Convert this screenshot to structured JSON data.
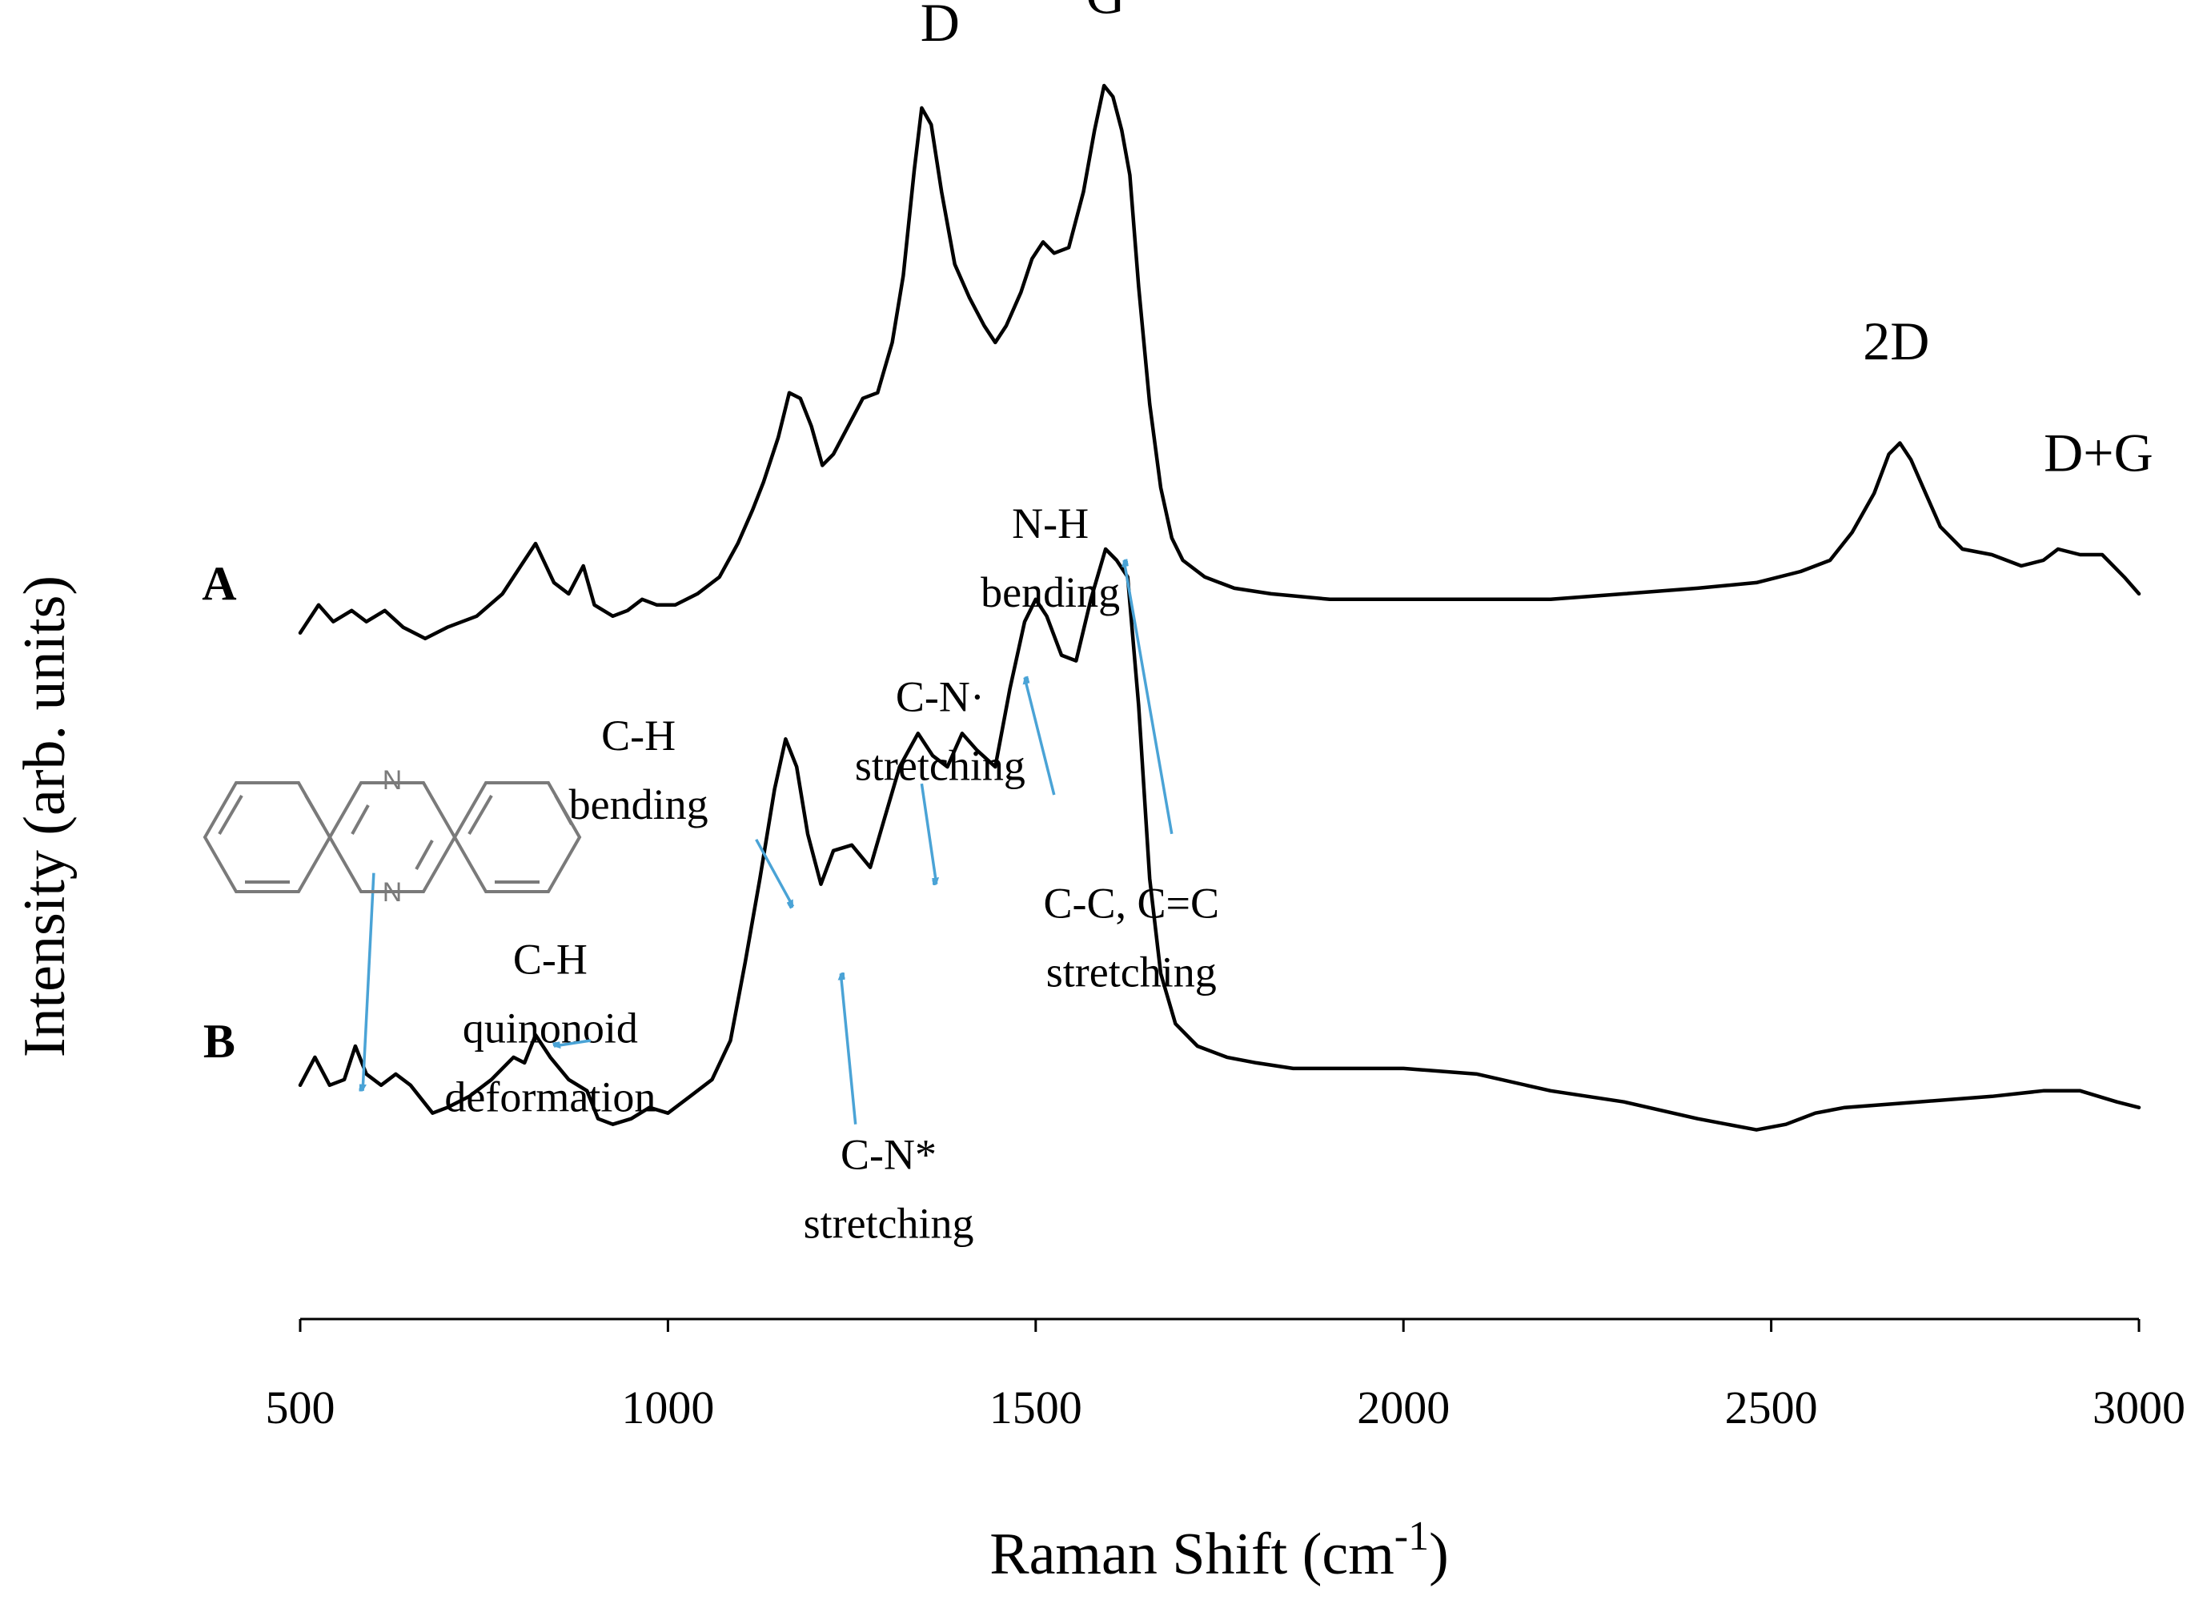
{
  "chart_data": {
    "type": "line",
    "title": "",
    "xlabel": "Raman Shift (cm",
    "xlabel_superscript": "-1",
    "xlabel_suffix": ")",
    "ylabel": "Intensity (arb. units)",
    "xlim": [
      500,
      3000
    ],
    "ylim": [
      -1.15,
      1.0
    ],
    "x_ticks": [
      500,
      1000,
      1500,
      2000,
      2500,
      3000
    ],
    "x_tick_labels": [
      "500",
      "1000",
      "1500",
      "2000",
      "2500",
      "3000"
    ],
    "y_ticks_shown": false,
    "series": [
      {
        "name": "A",
        "offset": 0,
        "points": [
          [
            500,
            0.01
          ],
          [
            525,
            0.06
          ],
          [
            545,
            0.03
          ],
          [
            570,
            0.05
          ],
          [
            590,
            0.03
          ],
          [
            615,
            0.05
          ],
          [
            640,
            0.02
          ],
          [
            670,
            0.0
          ],
          [
            700,
            0.02
          ],
          [
            740,
            0.04
          ],
          [
            775,
            0.08
          ],
          [
            800,
            0.13
          ],
          [
            820,
            0.17
          ],
          [
            845,
            0.1
          ],
          [
            865,
            0.08
          ],
          [
            885,
            0.13
          ],
          [
            900,
            0.06
          ],
          [
            925,
            0.04
          ],
          [
            945,
            0.05
          ],
          [
            965,
            0.07
          ],
          [
            985,
            0.06
          ],
          [
            1010,
            0.06
          ],
          [
            1040,
            0.08
          ],
          [
            1070,
            0.11
          ],
          [
            1095,
            0.17
          ],
          [
            1115,
            0.23
          ],
          [
            1130,
            0.28
          ],
          [
            1150,
            0.36
          ],
          [
            1165,
            0.44
          ],
          [
            1180,
            0.43
          ],
          [
            1195,
            0.38
          ],
          [
            1210,
            0.31
          ],
          [
            1225,
            0.33
          ],
          [
            1245,
            0.38
          ],
          [
            1265,
            0.43
          ],
          [
            1285,
            0.44
          ],
          [
            1305,
            0.53
          ],
          [
            1320,
            0.65
          ],
          [
            1335,
            0.84
          ],
          [
            1345,
            0.95
          ],
          [
            1358,
            0.92
          ],
          [
            1372,
            0.8
          ],
          [
            1390,
            0.67
          ],
          [
            1410,
            0.61
          ],
          [
            1430,
            0.56
          ],
          [
            1445,
            0.53
          ],
          [
            1460,
            0.56
          ],
          [
            1480,
            0.62
          ],
          [
            1495,
            0.68
          ],
          [
            1510,
            0.71
          ],
          [
            1525,
            0.69
          ],
          [
            1545,
            0.7
          ],
          [
            1565,
            0.8
          ],
          [
            1580,
            0.91
          ],
          [
            1593,
            0.99
          ],
          [
            1605,
            0.97
          ],
          [
            1617,
            0.91
          ],
          [
            1628,
            0.83
          ],
          [
            1640,
            0.63
          ],
          [
            1655,
            0.42
          ],
          [
            1670,
            0.27
          ],
          [
            1685,
            0.18
          ],
          [
            1700,
            0.14
          ],
          [
            1730,
            0.11
          ],
          [
            1770,
            0.09
          ],
          [
            1820,
            0.08
          ],
          [
            1900,
            0.07
          ],
          [
            2000,
            0.07
          ],
          [
            2100,
            0.07
          ],
          [
            2200,
            0.07
          ],
          [
            2300,
            0.08
          ],
          [
            2400,
            0.09
          ],
          [
            2480,
            0.1
          ],
          [
            2540,
            0.12
          ],
          [
            2580,
            0.14
          ],
          [
            2610,
            0.19
          ],
          [
            2640,
            0.26
          ],
          [
            2660,
            0.33
          ],
          [
            2675,
            0.35
          ],
          [
            2690,
            0.32
          ],
          [
            2710,
            0.26
          ],
          [
            2730,
            0.2
          ],
          [
            2760,
            0.16
          ],
          [
            2800,
            0.15
          ],
          [
            2840,
            0.13
          ],
          [
            2870,
            0.14
          ],
          [
            2890,
            0.16
          ],
          [
            2920,
            0.15
          ],
          [
            2950,
            0.15
          ],
          [
            2980,
            0.11
          ],
          [
            3000,
            0.08
          ]
        ]
      },
      {
        "name": "B",
        "offset": 0,
        "points": [
          [
            500,
            -0.8
          ],
          [
            520,
            -0.75
          ],
          [
            540,
            -0.8
          ],
          [
            560,
            -0.79
          ],
          [
            575,
            -0.73
          ],
          [
            590,
            -0.78
          ],
          [
            610,
            -0.8
          ],
          [
            630,
            -0.78
          ],
          [
            650,
            -0.8
          ],
          [
            680,
            -0.85
          ],
          [
            700,
            -0.84
          ],
          [
            730,
            -0.82
          ],
          [
            760,
            -0.79
          ],
          [
            790,
            -0.75
          ],
          [
            805,
            -0.76
          ],
          [
            820,
            -0.71
          ],
          [
            840,
            -0.75
          ],
          [
            865,
            -0.79
          ],
          [
            890,
            -0.81
          ],
          [
            905,
            -0.86
          ],
          [
            925,
            -0.87
          ],
          [
            950,
            -0.86
          ],
          [
            975,
            -0.84
          ],
          [
            1000,
            -0.85
          ],
          [
            1030,
            -0.82
          ],
          [
            1060,
            -0.79
          ],
          [
            1085,
            -0.72
          ],
          [
            1105,
            -0.58
          ],
          [
            1125,
            -0.43
          ],
          [
            1145,
            -0.27
          ],
          [
            1160,
            -0.18
          ],
          [
            1175,
            -0.23
          ],
          [
            1190,
            -0.35
          ],
          [
            1208,
            -0.44
          ],
          [
            1225,
            -0.38
          ],
          [
            1250,
            -0.37
          ],
          [
            1275,
            -0.41
          ],
          [
            1295,
            -0.32
          ],
          [
            1315,
            -0.23
          ],
          [
            1340,
            -0.17
          ],
          [
            1360,
            -0.21
          ],
          [
            1380,
            -0.23
          ],
          [
            1400,
            -0.17
          ],
          [
            1420,
            -0.2
          ],
          [
            1445,
            -0.23
          ],
          [
            1465,
            -0.09
          ],
          [
            1485,
            0.03
          ],
          [
            1500,
            0.07
          ],
          [
            1515,
            0.04
          ],
          [
            1535,
            -0.03
          ],
          [
            1555,
            -0.04
          ],
          [
            1575,
            0.07
          ],
          [
            1595,
            0.16
          ],
          [
            1610,
            0.14
          ],
          [
            1625,
            0.11
          ],
          [
            1640,
            -0.12
          ],
          [
            1655,
            -0.43
          ],
          [
            1670,
            -0.6
          ],
          [
            1690,
            -0.69
          ],
          [
            1720,
            -0.73
          ],
          [
            1760,
            -0.75
          ],
          [
            1800,
            -0.76
          ],
          [
            1850,
            -0.77
          ],
          [
            1900,
            -0.77
          ],
          [
            2000,
            -0.77
          ],
          [
            2100,
            -0.78
          ],
          [
            2200,
            -0.81
          ],
          [
            2300,
            -0.83
          ],
          [
            2400,
            -0.86
          ],
          [
            2480,
            -0.88
          ],
          [
            2520,
            -0.87
          ],
          [
            2560,
            -0.85
          ],
          [
            2600,
            -0.84
          ],
          [
            2700,
            -0.83
          ],
          [
            2800,
            -0.82
          ],
          [
            2870,
            -0.81
          ],
          [
            2920,
            -0.81
          ],
          [
            2970,
            -0.83
          ],
          [
            3000,
            -0.84
          ]
        ]
      }
    ],
    "series_labels": [
      {
        "text": "A",
        "x": 390,
        "y": 0.07
      },
      {
        "text": "B",
        "x": 390,
        "y": -0.75
      }
    ],
    "peak_labels": [
      {
        "text": "D",
        "x": 1370,
        "y": 1.07
      },
      {
        "text": "G",
        "x": 1595,
        "y": 1.12
      },
      {
        "text": "2D",
        "x": 2670,
        "y": 0.5
      },
      {
        "text": "D+G",
        "x": 2945,
        "y": 0.3
      }
    ],
    "annotations": [
      {
        "lines": [
          "C-N·",
          "stretching"
        ],
        "text_x": 1370,
        "text_y": -0.13,
        "arrow_from": [
          1345,
          -0.26
        ],
        "arrow_to": [
          1365,
          -0.44
        ]
      },
      {
        "lines": [
          "C-H",
          "bending"
        ],
        "text_x": 960,
        "text_y": -0.2,
        "arrow_from": [
          1120,
          -0.36
        ],
        "arrow_to": [
          1170,
          -0.48
        ]
      },
      {
        "lines": [
          "N-H",
          "bending"
        ],
        "text_x": 1520,
        "text_y": 0.18,
        "arrow_from": [
          1525,
          -0.28
        ],
        "arrow_to": [
          1485,
          -0.07
        ]
      },
      {
        "lines": [
          "C-C, C=C",
          "stretching"
        ],
        "text_x": 1630,
        "text_y": -0.5,
        "arrow_from": [
          1685,
          -0.35
        ],
        "arrow_to": [
          1620,
          0.14
        ]
      },
      {
        "lines": [
          "C-H",
          "quinonoid",
          "deformation"
        ],
        "text_x": 840,
        "text_y": -0.6,
        "arrow_from": [
          895,
          -0.72
        ],
        "arrow_to": [
          845,
          -0.73
        ]
      },
      {
        "lines": [
          "C-N*",
          "stretching"
        ],
        "text_x": 1300,
        "text_y": -0.95,
        "arrow_from": [
          1255,
          -0.87
        ],
        "arrow_to": [
          1235,
          -0.6
        ]
      },
      {
        "lines": [],
        "text_x": 0,
        "text_y": 0,
        "arrow_from": [
          600,
          -0.42
        ],
        "arrow_to": [
          585,
          -0.81
        ]
      }
    ],
    "molecule_label": "N"
  }
}
